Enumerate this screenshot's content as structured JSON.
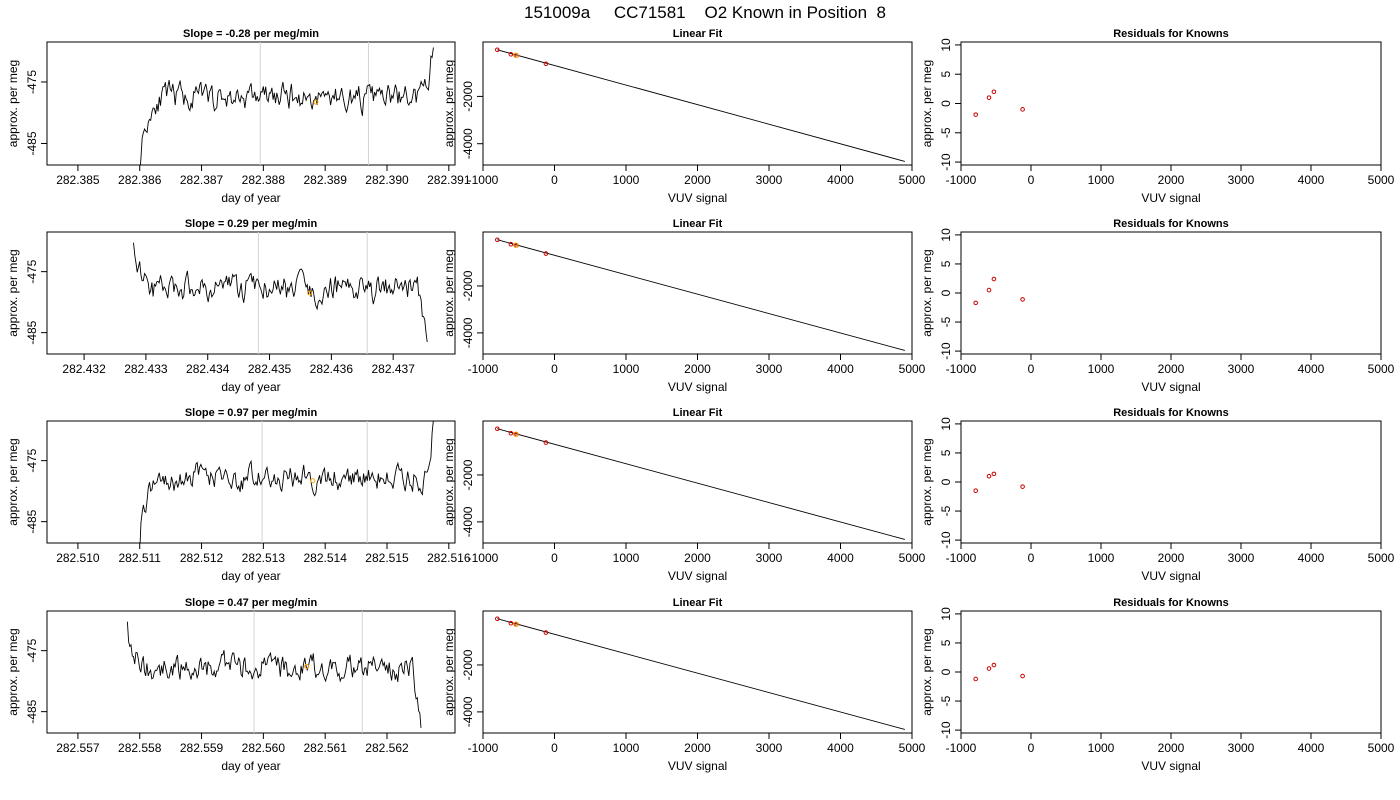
{
  "figure": {
    "title": "151009a     CC71581    O2 Known in Position  8"
  },
  "colors": {
    "series": "#000000",
    "guide_lines": "#d3d3d3",
    "marker_highlight": "#ffa500",
    "known_points": "#cc0000"
  },
  "chart_data": [
    {
      "type": "line",
      "row": 0,
      "panel": "time-series",
      "title": "Slope =  -0.28  per meg/min",
      "xlabel": "day of year",
      "ylabel": "approx. per meg",
      "xlim": [
        282.3845,
        282.3911
      ],
      "ylim": [
        -488.5,
        -468.5
      ],
      "xticks": [
        282.385,
        282.386,
        282.387,
        282.388,
        282.389,
        282.39,
        282.391
      ],
      "xtick_labels": [
        "282.385",
        "282.386",
        "282.387",
        "282.388",
        "282.389",
        "282.390",
        "282.391"
      ],
      "yticks": [
        -475,
        -485
      ],
      "ytick_labels": [
        "-475",
        "-485"
      ],
      "vlines": [
        282.38795,
        282.3897
      ],
      "marker": {
        "x": 282.38885,
        "y": -478.3
      },
      "series_spec": {
        "x_start": 282.386,
        "x_end": 282.39075,
        "start_y": -488.5,
        "level": -477.5,
        "end_y": -468.5,
        "noise": 1.6,
        "seed": 11
      }
    },
    {
      "type": "line",
      "row": 1,
      "panel": "time-series",
      "title": "Slope =  0.29  per meg/min",
      "xlabel": "day of year",
      "ylabel": "approx. per meg",
      "xlim": [
        282.4314,
        282.438
      ],
      "ylim": [
        -488.5,
        -468.5
      ],
      "xticks": [
        282.432,
        282.433,
        282.434,
        282.435,
        282.436,
        282.437
      ],
      "xtick_labels": [
        "282.432",
        "282.433",
        "282.434",
        "282.435",
        "282.436",
        "282.437"
      ],
      "yticks": [
        -475,
        -485
      ],
      "ytick_labels": [
        "-475",
        "-485"
      ],
      "vlines": [
        282.43482,
        282.43658
      ],
      "marker": {
        "x": 282.43565,
        "y": -478.5
      },
      "series_spec": {
        "x_start": 282.4328,
        "x_end": 282.43755,
        "start_y": -468.5,
        "level": -477.8,
        "end_y": -488.5,
        "noise": 1.6,
        "seed": 23
      }
    },
    {
      "type": "line",
      "row": 2,
      "panel": "time-series",
      "title": "Slope =  0.97  per meg/min",
      "xlabel": "day of year",
      "ylabel": "approx. per meg",
      "xlim": [
        282.5095,
        282.5161
      ],
      "ylim": [
        -488.5,
        -468.5
      ],
      "xticks": [
        282.51,
        282.511,
        282.512,
        282.513,
        282.514,
        282.515,
        282.516
      ],
      "xtick_labels": [
        "282.510",
        "282.511",
        "282.512",
        "282.513",
        "282.514",
        "282.515",
        "282.516"
      ],
      "yticks": [
        -475,
        -485
      ],
      "ytick_labels": [
        "-475",
        "-485"
      ],
      "vlines": [
        282.51298,
        282.51468
      ],
      "marker": {
        "x": 282.5138,
        "y": -478.3
      },
      "series_spec": {
        "x_start": 282.511,
        "x_end": 282.51575,
        "start_y": -488.5,
        "level": -477.8,
        "end_y": -468.5,
        "noise": 1.5,
        "seed": 37
      }
    },
    {
      "type": "line",
      "row": 3,
      "panel": "time-series",
      "title": "Slope =  0.47  per meg/min",
      "xlabel": "day of year",
      "ylabel": "approx. per meg",
      "xlim": [
        282.5565,
        282.5631
      ],
      "ylim": [
        -488.5,
        -468.5
      ],
      "xticks": [
        282.557,
        282.558,
        282.559,
        282.56,
        282.561,
        282.562
      ],
      "xtick_labels": [
        "282.557",
        "282.558",
        "282.559",
        "282.560",
        "282.561",
        "282.562"
      ],
      "yticks": [
        -475,
        -485
      ],
      "ytick_labels": [
        "-475",
        "-485"
      ],
      "vlines": [
        282.55985,
        282.5616
      ],
      "marker": {
        "x": 282.5607,
        "y": -477.6
      },
      "series_spec": {
        "x_start": 282.5578,
        "x_end": 282.56255,
        "start_y": -468.5,
        "level": -477.8,
        "end_y": -488.5,
        "noise": 1.6,
        "seed": 53
      }
    },
    {
      "type": "scatter",
      "row": 0,
      "panel": "linear-fit",
      "title": "Linear Fit",
      "xlabel": "VUV signal",
      "ylabel": "approx. per meg",
      "xlim": [
        -1000,
        5000
      ],
      "ylim": [
        -4900,
        300
      ],
      "xticks": [
        -1000,
        0,
        1000,
        2000,
        3000,
        4000,
        5000
      ],
      "xtick_labels": [
        "-1000",
        "0",
        "1000",
        "2000",
        "3000",
        "4000",
        "5000"
      ],
      "yticks": [
        -2000,
        -4000
      ],
      "ytick_labels": [
        "-2000",
        "-4000"
      ],
      "fit_line": {
        "x": [
          -800,
          4900
        ],
        "y": [
          -30,
          -4750
        ]
      },
      "points": {
        "x": [
          -800,
          -610,
          -530,
          -120
        ],
        "y": [
          -30,
          -220,
          -270,
          -620
        ]
      },
      "highlight": {
        "x": -540,
        "y": -265
      }
    },
    {
      "type": "scatter",
      "row": 1,
      "panel": "linear-fit",
      "title": "Linear Fit",
      "xlabel": "VUV signal",
      "ylabel": "approx. per meg",
      "xlim": [
        -1000,
        5000
      ],
      "ylim": [
        -4900,
        300
      ],
      "xticks": [
        -1000,
        0,
        1000,
        2000,
        3000,
        4000,
        5000
      ],
      "xtick_labels": [
        "-1000",
        "0",
        "1000",
        "2000",
        "3000",
        "4000",
        "5000"
      ],
      "yticks": [
        -2000,
        -4000
      ],
      "ytick_labels": [
        "-2000",
        "-4000"
      ],
      "fit_line": {
        "x": [
          -800,
          4900
        ],
        "y": [
          -30,
          -4750
        ]
      },
      "points": {
        "x": [
          -800,
          -610,
          -530,
          -120
        ],
        "y": [
          -30,
          -220,
          -270,
          -620
        ]
      },
      "highlight": {
        "x": -540,
        "y": -265
      }
    },
    {
      "type": "scatter",
      "row": 2,
      "panel": "linear-fit",
      "title": "Linear Fit",
      "xlabel": "VUV signal",
      "ylabel": "approx. per meg",
      "xlim": [
        -1000,
        5000
      ],
      "ylim": [
        -4900,
        300
      ],
      "xticks": [
        -1000,
        0,
        1000,
        2000,
        3000,
        4000,
        5000
      ],
      "xtick_labels": [
        "-1000",
        "0",
        "1000",
        "2000",
        "3000",
        "4000",
        "5000"
      ],
      "yticks": [
        -2000,
        -4000
      ],
      "ytick_labels": [
        "-2000",
        "-4000"
      ],
      "fit_line": {
        "x": [
          -800,
          4900
        ],
        "y": [
          -30,
          -4750
        ]
      },
      "points": {
        "x": [
          -800,
          -610,
          -530,
          -120
        ],
        "y": [
          -30,
          -220,
          -270,
          -620
        ]
      },
      "highlight": {
        "x": -540,
        "y": -265
      }
    },
    {
      "type": "scatter",
      "row": 3,
      "panel": "linear-fit",
      "title": "Linear Fit",
      "xlabel": "VUV signal",
      "ylabel": "approx. per meg",
      "xlim": [
        -1000,
        5000
      ],
      "ylim": [
        -4900,
        300
      ],
      "xticks": [
        -1000,
        0,
        1000,
        2000,
        3000,
        4000,
        5000
      ],
      "xtick_labels": [
        "-1000",
        "0",
        "1000",
        "2000",
        "3000",
        "4000",
        "5000"
      ],
      "yticks": [
        -2000,
        -4000
      ],
      "ytick_labels": [
        "-2000",
        "-4000"
      ],
      "fit_line": {
        "x": [
          -800,
          4900
        ],
        "y": [
          -30,
          -4750
        ]
      },
      "points": {
        "x": [
          -800,
          -610,
          -530,
          -120
        ],
        "y": [
          -30,
          -220,
          -270,
          -620
        ]
      },
      "highlight": {
        "x": -540,
        "y": -265
      }
    },
    {
      "type": "scatter",
      "row": 0,
      "panel": "residuals",
      "title": "Residuals for Knowns",
      "xlabel": "VUV signal",
      "ylabel": "approx. per meg",
      "xlim": [
        -1000,
        5000
      ],
      "ylim": [
        -10.5,
        10.5
      ],
      "xticks": [
        -1000,
        0,
        1000,
        2000,
        3000,
        4000,
        5000
      ],
      "xtick_labels": [
        "-1000",
        "0",
        "1000",
        "2000",
        "3000",
        "4000",
        "5000"
      ],
      "yticks": [
        10,
        5,
        0,
        -5,
        -10
      ],
      "ytick_labels": [
        "10",
        "5",
        "0",
        "-5",
        "-10"
      ],
      "points": {
        "x": [
          -790,
          -600,
          -530,
          -120
        ],
        "y": [
          -1.9,
          1.0,
          2.0,
          -1.0
        ]
      }
    },
    {
      "type": "scatter",
      "row": 1,
      "panel": "residuals",
      "title": "Residuals for Knowns",
      "xlabel": "VUV signal",
      "ylabel": "approx. per meg",
      "xlim": [
        -1000,
        5000
      ],
      "ylim": [
        -10.5,
        10.5
      ],
      "xticks": [
        -1000,
        0,
        1000,
        2000,
        3000,
        4000,
        5000
      ],
      "xtick_labels": [
        "-1000",
        "0",
        "1000",
        "2000",
        "3000",
        "4000",
        "5000"
      ],
      "yticks": [
        10,
        5,
        0,
        -5,
        -10
      ],
      "ytick_labels": [
        "10",
        "5",
        "0",
        "-5",
        "-10"
      ],
      "points": {
        "x": [
          -790,
          -600,
          -530,
          -120
        ],
        "y": [
          -1.7,
          0.5,
          2.4,
          -1.1
        ]
      }
    },
    {
      "type": "scatter",
      "row": 2,
      "panel": "residuals",
      "title": "Residuals for Knowns",
      "xlabel": "VUV signal",
      "ylabel": "approx. per meg",
      "xlim": [
        -1000,
        5000
      ],
      "ylim": [
        -10.5,
        10.5
      ],
      "xticks": [
        -1000,
        0,
        1000,
        2000,
        3000,
        4000,
        5000
      ],
      "xtick_labels": [
        "-1000",
        "0",
        "1000",
        "2000",
        "3000",
        "4000",
        "5000"
      ],
      "yticks": [
        10,
        5,
        0,
        -5,
        -10
      ],
      "ytick_labels": [
        "10",
        "5",
        "0",
        "-5",
        "-10"
      ],
      "points": {
        "x": [
          -790,
          -600,
          -530,
          -120
        ],
        "y": [
          -1.5,
          1.0,
          1.4,
          -0.8
        ]
      }
    },
    {
      "type": "scatter",
      "row": 3,
      "panel": "residuals",
      "title": "Residuals for Knowns",
      "xlabel": "VUV signal",
      "ylabel": "approx. per meg",
      "xlim": [
        -1000,
        5000
      ],
      "ylim": [
        -10.5,
        10.5
      ],
      "xticks": [
        -1000,
        0,
        1000,
        2000,
        3000,
        4000,
        5000
      ],
      "xtick_labels": [
        "-1000",
        "0",
        "1000",
        "2000",
        "3000",
        "4000",
        "5000"
      ],
      "yticks": [
        10,
        5,
        0,
        -5,
        -10
      ],
      "ytick_labels": [
        "10",
        "5",
        "0",
        "-5",
        "-10"
      ],
      "points": {
        "x": [
          -790,
          -600,
          -530,
          -120
        ],
        "y": [
          -1.2,
          0.6,
          1.2,
          -0.7
        ]
      }
    }
  ]
}
